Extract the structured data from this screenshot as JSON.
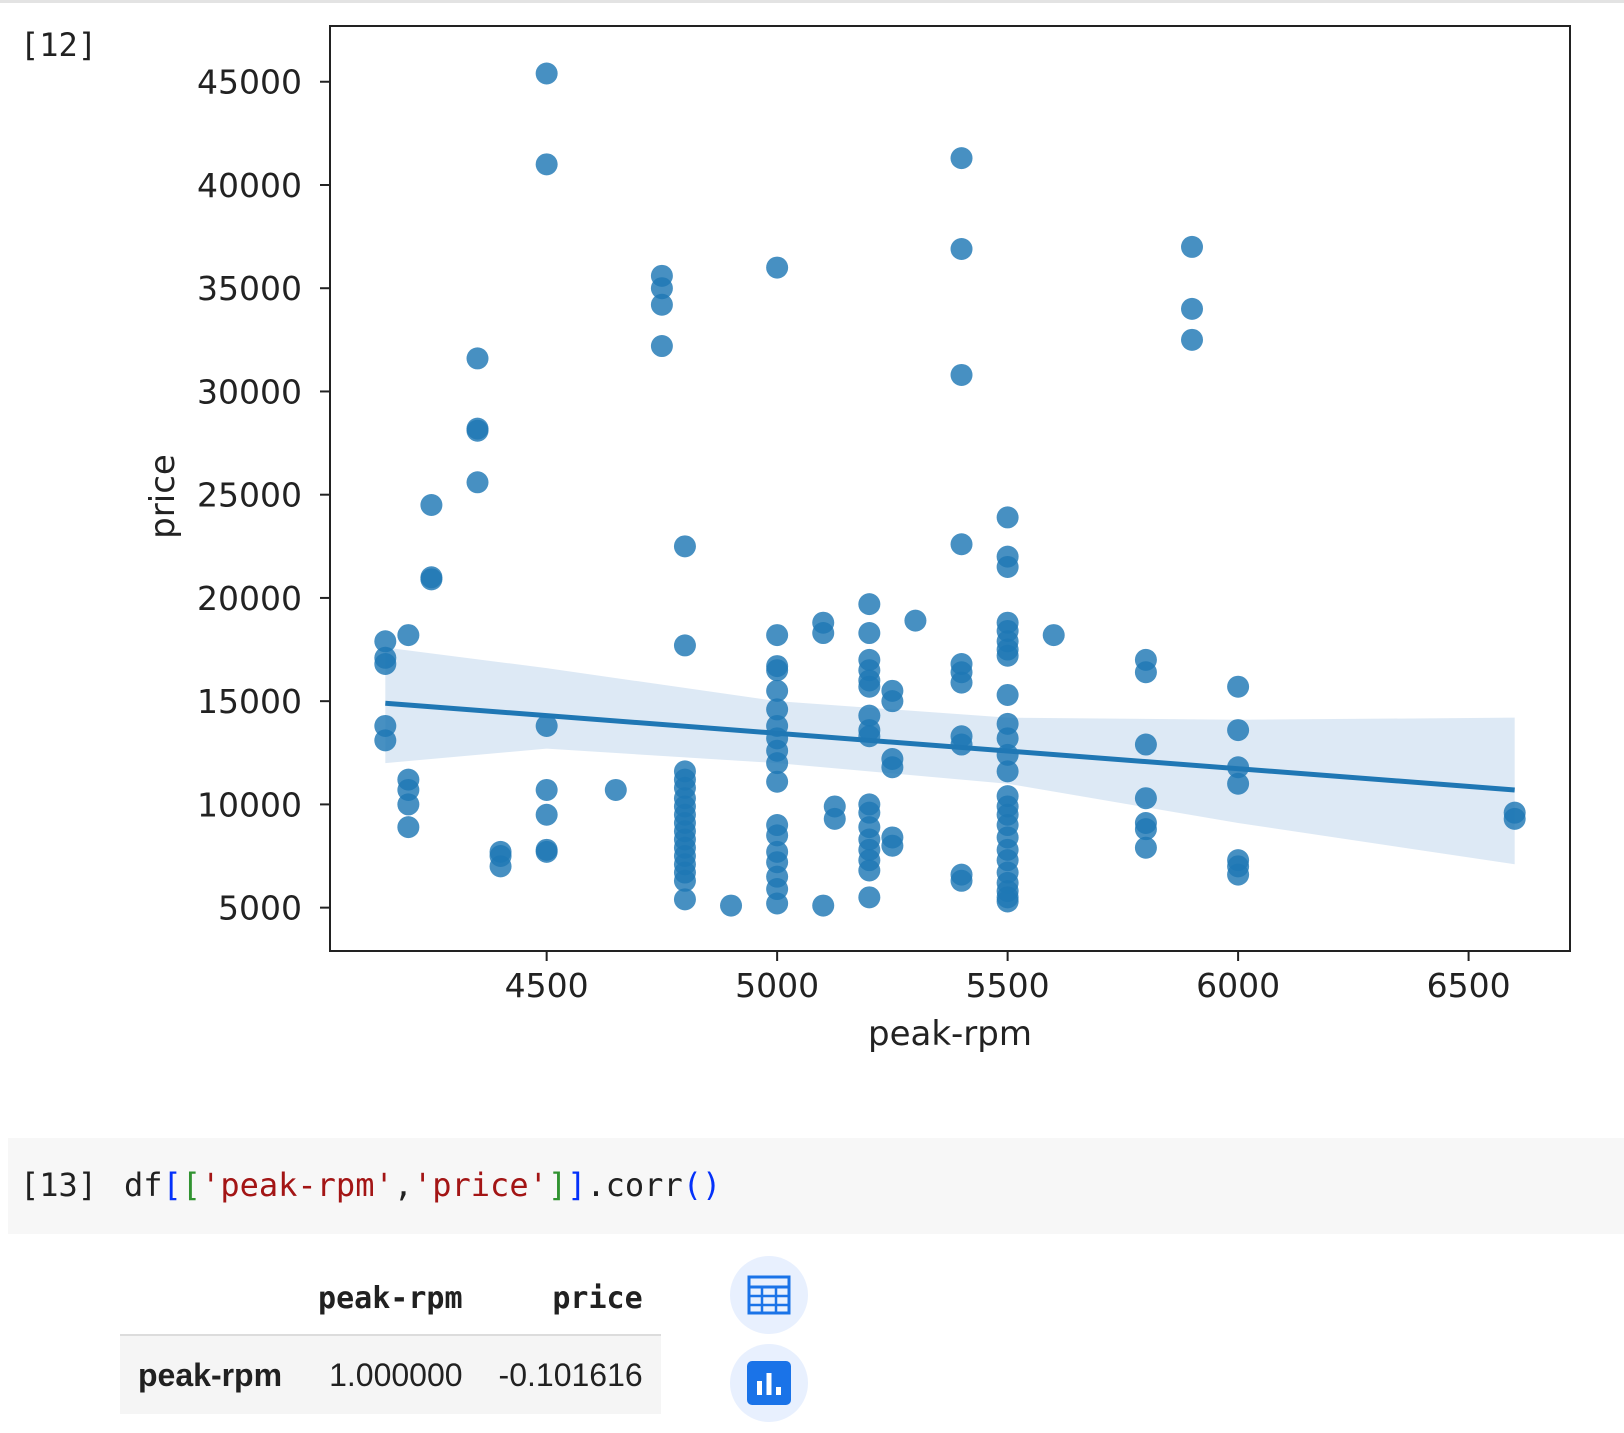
{
  "cells": {
    "output_cell": {
      "label": "[12]"
    },
    "code_cell": {
      "label": "[13]",
      "tokens": {
        "df": "df",
        "open_outer": "[",
        "open_inner": "[",
        "str1": "'peak-rpm'",
        "comma": ",",
        "str2": "'price'",
        "close_inner": "]",
        "close_outer": "]",
        "method": ".corr",
        "open_paren": "(",
        "close_paren": ")"
      }
    }
  },
  "dataframe": {
    "columns": [
      "peak-rpm",
      "price"
    ],
    "rows": [
      {
        "index": "peak-rpm",
        "values": [
          "1.000000",
          "-0.101616"
        ]
      }
    ]
  },
  "buttons": {
    "table_view": "table-icon",
    "chart_view": "bar-chart-icon"
  },
  "colors": {
    "point": "#1f77b4",
    "band": "#c6dbef",
    "accent": "#1a73e8"
  },
  "chart_data": {
    "type": "scatter",
    "title": "",
    "xlabel": "peak-rpm",
    "ylabel": "price",
    "xlim": [
      4030,
      6720
    ],
    "ylim": [
      2900,
      47700
    ],
    "xticks": [
      4500,
      5000,
      5500,
      6000,
      6500
    ],
    "yticks": [
      5000,
      10000,
      15000,
      20000,
      25000,
      30000,
      35000,
      40000,
      45000
    ],
    "grid": false,
    "points": [
      [
        4150,
        17900
      ],
      [
        4150,
        17100
      ],
      [
        4150,
        16800
      ],
      [
        4150,
        13800
      ],
      [
        4150,
        13100
      ],
      [
        4200,
        18200
      ],
      [
        4200,
        11200
      ],
      [
        4200,
        10700
      ],
      [
        4200,
        10000
      ],
      [
        4200,
        8900
      ],
      [
        4250,
        24500
      ],
      [
        4250,
        21000
      ],
      [
        4250,
        20900
      ],
      [
        4350,
        31600
      ],
      [
        4350,
        28200
      ],
      [
        4350,
        28100
      ],
      [
        4350,
        25600
      ],
      [
        4400,
        7700
      ],
      [
        4400,
        7500
      ],
      [
        4400,
        7000
      ],
      [
        4500,
        45400
      ],
      [
        4500,
        41000
      ],
      [
        4500,
        13800
      ],
      [
        4500,
        10700
      ],
      [
        4500,
        9500
      ],
      [
        4500,
        7800
      ],
      [
        4500,
        7700
      ],
      [
        4650,
        10700
      ],
      [
        4750,
        35600
      ],
      [
        4750,
        35000
      ],
      [
        4750,
        34200
      ],
      [
        4750,
        32200
      ],
      [
        4800,
        22500
      ],
      [
        4800,
        17700
      ],
      [
        4800,
        11600
      ],
      [
        4800,
        11200
      ],
      [
        4800,
        10800
      ],
      [
        4800,
        10300
      ],
      [
        4800,
        9900
      ],
      [
        4800,
        9500
      ],
      [
        4800,
        9100
      ],
      [
        4800,
        8700
      ],
      [
        4800,
        8300
      ],
      [
        4800,
        7900
      ],
      [
        4800,
        7500
      ],
      [
        4800,
        7100
      ],
      [
        4800,
        6700
      ],
      [
        4800,
        6300
      ],
      [
        4800,
        5400
      ],
      [
        4900,
        5100
      ],
      [
        5000,
        36000
      ],
      [
        5000,
        18200
      ],
      [
        5000,
        16700
      ],
      [
        5000,
        16500
      ],
      [
        5000,
        15500
      ],
      [
        5000,
        14600
      ],
      [
        5000,
        13800
      ],
      [
        5000,
        13200
      ],
      [
        5000,
        12600
      ],
      [
        5000,
        12000
      ],
      [
        5000,
        11100
      ],
      [
        5000,
        9000
      ],
      [
        5000,
        8500
      ],
      [
        5000,
        7700
      ],
      [
        5000,
        7200
      ],
      [
        5000,
        6500
      ],
      [
        5000,
        5900
      ],
      [
        5000,
        5200
      ],
      [
        5100,
        18800
      ],
      [
        5100,
        18300
      ],
      [
        5100,
        5100
      ],
      [
        5125,
        9900
      ],
      [
        5125,
        9300
      ],
      [
        5200,
        19700
      ],
      [
        5200,
        18300
      ],
      [
        5200,
        17000
      ],
      [
        5200,
        16500
      ],
      [
        5200,
        16000
      ],
      [
        5200,
        15700
      ],
      [
        5200,
        14300
      ],
      [
        5200,
        13600
      ],
      [
        5200,
        13300
      ],
      [
        5200,
        10000
      ],
      [
        5200,
        9600
      ],
      [
        5200,
        8900
      ],
      [
        5200,
        8300
      ],
      [
        5200,
        7800
      ],
      [
        5200,
        7300
      ],
      [
        5200,
        6800
      ],
      [
        5200,
        5500
      ],
      [
        5250,
        15500
      ],
      [
        5250,
        15000
      ],
      [
        5250,
        12200
      ],
      [
        5250,
        11800
      ],
      [
        5250,
        8400
      ],
      [
        5250,
        8000
      ],
      [
        5300,
        18900
      ],
      [
        5400,
        41300
      ],
      [
        5400,
        36900
      ],
      [
        5400,
        30800
      ],
      [
        5400,
        22600
      ],
      [
        5400,
        16800
      ],
      [
        5400,
        16400
      ],
      [
        5400,
        15900
      ],
      [
        5400,
        13300
      ],
      [
        5400,
        12900
      ],
      [
        5400,
        6600
      ],
      [
        5400,
        6300
      ],
      [
        5500,
        23900
      ],
      [
        5500,
        22000
      ],
      [
        5500,
        21500
      ],
      [
        5500,
        18800
      ],
      [
        5500,
        18400
      ],
      [
        5500,
        17900
      ],
      [
        5500,
        17500
      ],
      [
        5500,
        17200
      ],
      [
        5500,
        15300
      ],
      [
        5500,
        13900
      ],
      [
        5500,
        13200
      ],
      [
        5500,
        12400
      ],
      [
        5500,
        11600
      ],
      [
        5500,
        10400
      ],
      [
        5500,
        9900
      ],
      [
        5500,
        9500
      ],
      [
        5500,
        9000
      ],
      [
        5500,
        8400
      ],
      [
        5500,
        7800
      ],
      [
        5500,
        7300
      ],
      [
        5500,
        6700
      ],
      [
        5500,
        6200
      ],
      [
        5500,
        5800
      ],
      [
        5500,
        5500
      ],
      [
        5500,
        5300
      ],
      [
        5600,
        18200
      ],
      [
        5800,
        17000
      ],
      [
        5800,
        16400
      ],
      [
        5800,
        12900
      ],
      [
        5800,
        10300
      ],
      [
        5800,
        9100
      ],
      [
        5800,
        8800
      ],
      [
        5800,
        7900
      ],
      [
        5900,
        37000
      ],
      [
        5900,
        34000
      ],
      [
        5900,
        32500
      ],
      [
        6000,
        15700
      ],
      [
        6000,
        13600
      ],
      [
        6000,
        11800
      ],
      [
        6000,
        11000
      ],
      [
        6000,
        7300
      ],
      [
        6000,
        7000
      ],
      [
        6000,
        6600
      ],
      [
        6600,
        9600
      ],
      [
        6600,
        9300
      ]
    ],
    "regression": {
      "x0": 4150,
      "y0": 14900,
      "x1": 6600,
      "y1": 10700,
      "ci_upper": [
        [
          4150,
          17600
        ],
        [
          4500,
          16600
        ],
        [
          5000,
          15000
        ],
        [
          5500,
          14200
        ],
        [
          6000,
          14100
        ],
        [
          6600,
          14200
        ]
      ],
      "ci_lower": [
        [
          4150,
          12000
        ],
        [
          4500,
          12700
        ],
        [
          5000,
          12000
        ],
        [
          5500,
          11000
        ],
        [
          6000,
          9100
        ],
        [
          6600,
          7100
        ]
      ]
    }
  }
}
